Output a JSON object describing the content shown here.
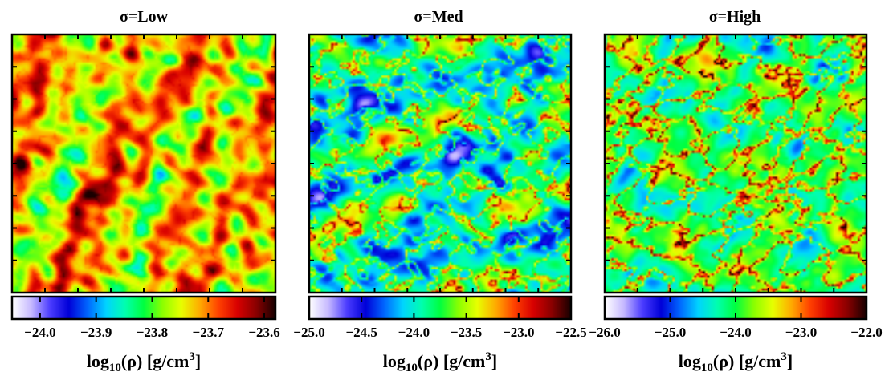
{
  "chart_data": [
    {
      "type": "heatmap",
      "title": "σ=Low",
      "colorbar": {
        "label_main": "log",
        "label_sub": "10",
        "label_mid": "(ρ) [g/cm",
        "label_sup": "3",
        "label_end": "]",
        "range": [
          -24.05,
          -23.58
        ],
        "ticks": [
          -24.0,
          -23.9,
          -23.8,
          -23.7,
          -23.6
        ],
        "tick_labels": [
          "−24.0",
          "−23.9",
          "−23.8",
          "−23.7",
          "−23.6"
        ]
      },
      "field": {
        "base_level": 0.68,
        "contrast": 0.3,
        "seed": 11,
        "filaments": 0.04,
        "features": "dense clumps, mostly red-orange with scattered low-density voids"
      }
    },
    {
      "type": "heatmap",
      "title": "σ=Med",
      "colorbar": {
        "label_main": "log",
        "label_sub": "10",
        "label_mid": "(ρ) [g/cm",
        "label_sup": "3",
        "label_end": "]",
        "range": [
          -25.0,
          -22.5
        ],
        "ticks": [
          -25.0,
          -24.5,
          -24.0,
          -23.5,
          -23.0,
          -22.5
        ],
        "tick_labels": [
          "−25.0",
          "−24.5",
          "−24.0",
          "−23.5",
          "−23.0",
          "−22.5"
        ]
      },
      "field": {
        "base_level": 0.4,
        "contrast": 0.26,
        "seed": 27,
        "filaments": 0.35,
        "features": "green-cyan background with blue voids and thin red filaments"
      }
    },
    {
      "type": "heatmap",
      "title": "σ=High",
      "colorbar": {
        "label_main": "log",
        "label_sub": "10",
        "label_mid": "(ρ) [g/cm",
        "label_sup": "3",
        "label_end": "]",
        "range": [
          -26.0,
          -22.0
        ],
        "ticks": [
          -26.0,
          -25.0,
          -24.0,
          -23.0,
          -22.0
        ],
        "tick_labels": [
          "−26.0",
          "−25.0",
          "−24.0",
          "−23.0",
          "−22.0"
        ]
      },
      "field": {
        "base_level": 0.47,
        "contrast": 0.18,
        "seed": 53,
        "filaments": 0.45,
        "features": "green background with cyan-blue voids and sharp red filaments"
      }
    }
  ],
  "colormap": [
    "#ffffff",
    "#c6b9ff",
    "#4b3cff",
    "#0000d8",
    "#0066ff",
    "#00d4ff",
    "#00ffb0",
    "#00ff40",
    "#8cff00",
    "#e8ff00",
    "#ffaa00",
    "#ff4000",
    "#d80000",
    "#8a0000",
    "#1a0000"
  ]
}
